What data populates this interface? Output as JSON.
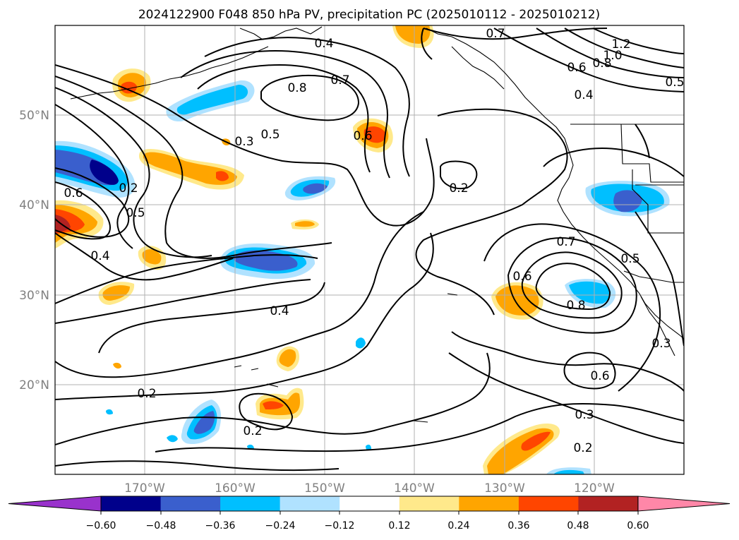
{
  "title": "2024122900 F048 850 hPa PV, precipitation PC (2025010112 - 2025010212)",
  "map": {
    "lat_labels": [
      "50°N",
      "40°N",
      "30°N",
      "20°N"
    ],
    "lon_labels": [
      "170°W",
      "160°W",
      "150°W",
      "140°W",
      "130°W",
      "120°W"
    ],
    "lon_range": [
      -180,
      -110
    ],
    "lat_range": [
      10,
      60
    ],
    "gridlines": true,
    "pv_contour_labels": [
      "0.4",
      "0.7",
      "1.2",
      "1.0",
      "0.6",
      "0.8",
      "0.4",
      "0.5",
      "0.8",
      "0.7",
      "0.5",
      "0.3",
      "0.6",
      "0.2",
      "0.6",
      "0.2",
      "0.5",
      "0.4",
      "0.7",
      "0.5",
      "0.6",
      "0.8",
      "0.4",
      "0.3",
      "0.2",
      "0.6",
      "0.2",
      "0.3",
      "0.2"
    ]
  },
  "colorbar": {
    "tick_labels": [
      "−0.60",
      "−0.48",
      "−0.36",
      "−0.24",
      "−0.12",
      "0.12",
      "0.24",
      "0.36",
      "0.48",
      "0.60"
    ],
    "colors": [
      "#9932cc",
      "#00008b",
      "#3a5fcd",
      "#00bfff",
      "#b0e2ff",
      "#ffffff",
      "#ffe98b",
      "#ffa500",
      "#ff4500",
      "#b22222",
      "#ff87a8"
    ]
  }
}
